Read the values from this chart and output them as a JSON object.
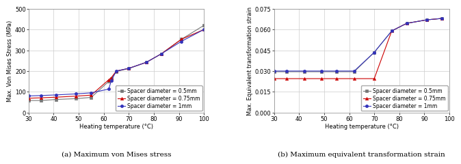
{
  "left_chart": {
    "title": "(a) Maximum von Mises stress",
    "xlabel": "Heating temperature (°C)",
    "ylabel": "Max. Von Mises Stress (MPa)",
    "xlim": [
      30,
      100
    ],
    "ylim": [
      0,
      500
    ],
    "xticks": [
      30,
      40,
      50,
      60,
      70,
      80,
      90,
      100
    ],
    "yticks": [
      0,
      100,
      200,
      300,
      400,
      500
    ],
    "series": [
      {
        "label": "Spacer diameter = 0.5mm",
        "color": "#777777",
        "marker": "s",
        "x": [
          30,
          35,
          41,
          49,
          55,
          62,
          63,
          65,
          70,
          77,
          83,
          91,
          100
        ],
        "y": [
          58,
          58,
          63,
          67,
          73,
          150,
          163,
          198,
          212,
          242,
          283,
          353,
          420
        ]
      },
      {
        "label": "Spacer diameter = 0.75mm",
        "color": "#cc0000",
        "marker": "^",
        "x": [
          30,
          35,
          41,
          49,
          55,
          62,
          63,
          65,
          70,
          77,
          83,
          91,
          100
        ],
        "y": [
          69,
          71,
          74,
          79,
          84,
          158,
          168,
          200,
          213,
          242,
          283,
          353,
          400
        ]
      },
      {
        "label": "Spacer diameter = 1mm",
        "color": "#3333bb",
        "marker": "o",
        "x": [
          30,
          35,
          41,
          49,
          55,
          62,
          63,
          65,
          70,
          77,
          83,
          91,
          100
        ],
        "y": [
          80,
          82,
          85,
          90,
          95,
          113,
          153,
          200,
          213,
          242,
          283,
          343,
          400
        ]
      }
    ]
  },
  "right_chart": {
    "title": "(b) Maximum equivalent transformation strain",
    "xlabel": "Heating temperature (°C)",
    "ylabel": "Max. Equivalent transformation strain",
    "xlim": [
      30,
      100
    ],
    "ylim": [
      0.0,
      0.075
    ],
    "xticks": [
      30,
      40,
      50,
      60,
      70,
      80,
      90,
      100
    ],
    "yticks": [
      0.0,
      0.015,
      0.03,
      0.045,
      0.06,
      0.075
    ],
    "series": [
      {
        "label": "Spacer diameter = 0.5mm",
        "color": "#777777",
        "marker": "s",
        "x": [
          30,
          35,
          42,
          49,
          55,
          62,
          70,
          77,
          83,
          91,
          97
        ],
        "y": [
          0.0295,
          0.0295,
          0.0295,
          0.0295,
          0.0295,
          0.0295,
          0.0435,
          0.059,
          0.0645,
          0.067,
          0.068
        ]
      },
      {
        "label": "Spacer diameter = 0.75mm",
        "color": "#cc0000",
        "marker": "^",
        "x": [
          30,
          35,
          42,
          49,
          55,
          62,
          70,
          77,
          83,
          91,
          97
        ],
        "y": [
          0.0245,
          0.0245,
          0.0245,
          0.0245,
          0.0245,
          0.0245,
          0.0245,
          0.059,
          0.0645,
          0.067,
          0.068
        ]
      },
      {
        "label": "Spacer diameter = 1mm",
        "color": "#3333bb",
        "marker": "o",
        "x": [
          30,
          35,
          42,
          49,
          55,
          62,
          70,
          77,
          83,
          91,
          97
        ],
        "y": [
          0.03,
          0.03,
          0.03,
          0.03,
          0.03,
          0.03,
          0.0435,
          0.059,
          0.0645,
          0.067,
          0.068
        ]
      }
    ]
  },
  "legend_fontsize": 5.5,
  "tick_fontsize": 6,
  "label_fontsize": 6,
  "title_fontsize": 7.5,
  "linewidth": 0.8,
  "markersize": 3,
  "grid_color": "#cccccc",
  "background_color": "#ffffff"
}
